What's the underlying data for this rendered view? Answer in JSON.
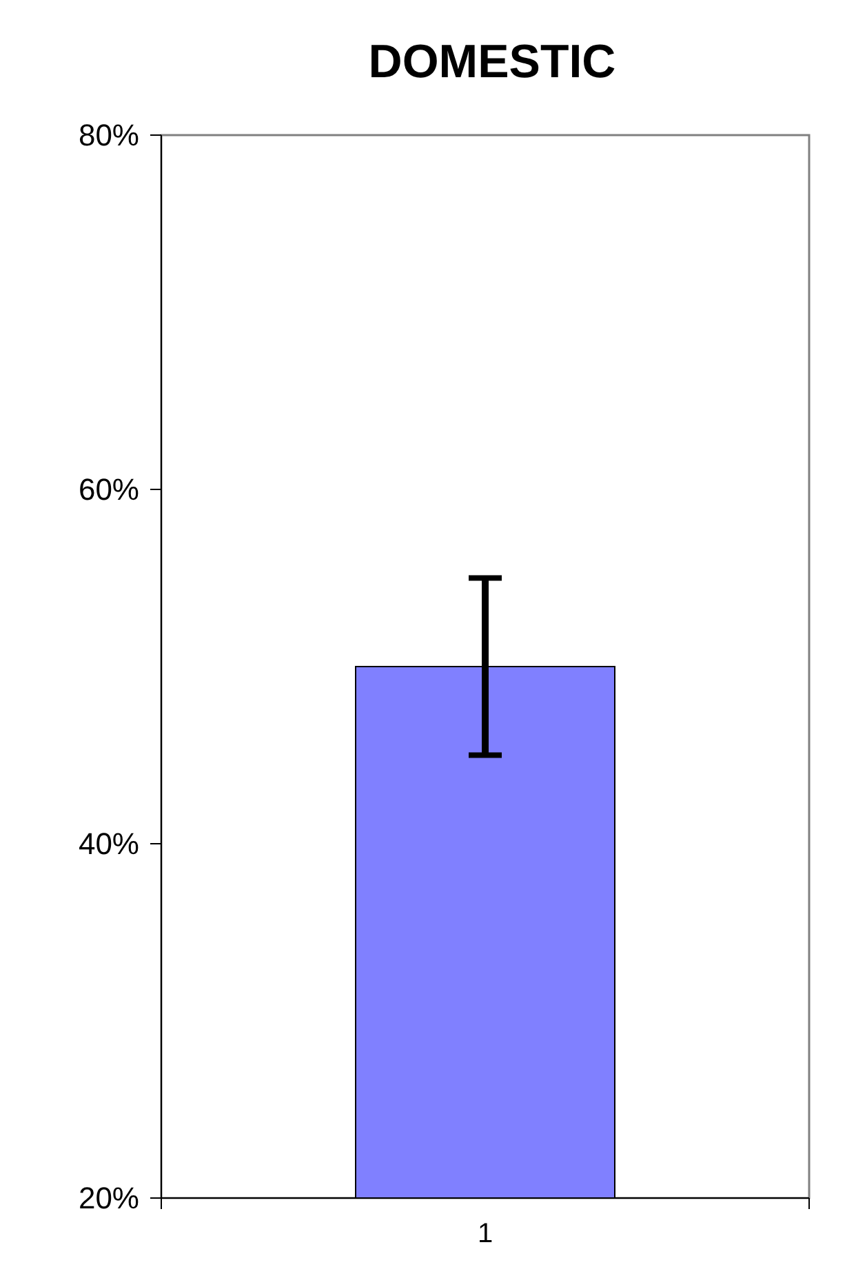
{
  "chart_data": {
    "type": "bar",
    "title": "DOMESTIC",
    "categories": [
      "1"
    ],
    "values": [
      50
    ],
    "errors": [
      5
    ],
    "color": "#8080ff",
    "ylim": [
      20,
      80
    ],
    "yticks": [
      {
        "value": 20,
        "label": "20%"
      },
      {
        "value": 40,
        "label": "40%"
      },
      {
        "value": 60,
        "label": "60%"
      },
      {
        "value": 80,
        "label": "80%"
      }
    ],
    "grid": false
  }
}
